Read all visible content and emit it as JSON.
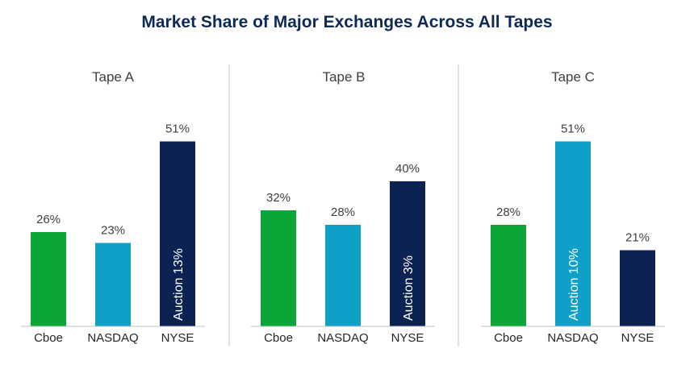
{
  "title": "Market Share of Major Exchanges Across All Tapes",
  "colors": {
    "Cboe": "#0aa637",
    "NASDAQ": "#0ea0c6",
    "NYSE": "#0b2253",
    "divider": "#d9d9d9",
    "baseline": "#bfbfbf"
  },
  "chart_data": [
    {
      "type": "bar",
      "title": "Tape A",
      "categories": [
        "Cboe",
        "NASDAQ",
        "NYSE"
      ],
      "values": [
        26,
        23,
        51
      ],
      "value_labels": [
        "26%",
        "23%",
        "51%"
      ],
      "annotations": [
        {
          "category": "NYSE",
          "text": "Auction 13%"
        }
      ]
    },
    {
      "type": "bar",
      "title": "Tape B",
      "categories": [
        "Cboe",
        "NASDAQ",
        "NYSE"
      ],
      "values": [
        32,
        28,
        40
      ],
      "value_labels": [
        "32%",
        "28%",
        "40%"
      ],
      "annotations": [
        {
          "category": "NYSE",
          "text": "Auction 3%"
        }
      ]
    },
    {
      "type": "bar",
      "title": "Tape C",
      "categories": [
        "Cboe",
        "NASDAQ",
        "NYSE"
      ],
      "values": [
        28,
        51,
        21
      ],
      "value_labels": [
        "28%",
        "51%",
        "21%"
      ],
      "annotations": [
        {
          "category": "NASDAQ",
          "text": "Auction 10%"
        }
      ]
    }
  ]
}
